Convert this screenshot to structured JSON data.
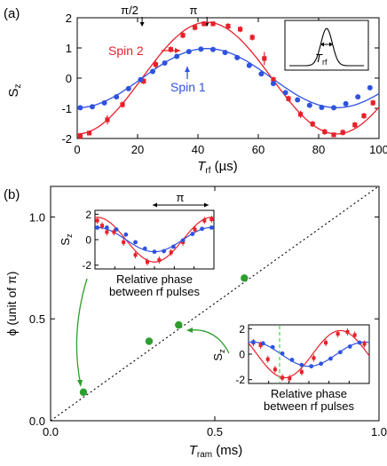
{
  "chart_data": [
    {
      "type": "scatter",
      "panel_label": "(a)",
      "xlabel": "T",
      "xlabel_sub": "rf",
      "xlabel_unit": "(µs)",
      "ylabel": "S",
      "ylabel_sub": "z",
      "xlim": [
        0,
        100
      ],
      "ylim": [
        -2,
        2
      ],
      "xticks": [
        "0",
        "20",
        "40",
        "60",
        "80",
        "100"
      ],
      "yticks": [
        "2",
        "1",
        "0",
        "-1",
        "-2"
      ],
      "top_markers": [
        {
          "x": 21.5,
          "label": "π/2"
        },
        {
          "x": 43,
          "label": "π"
        }
      ],
      "inset_label_main": "T",
      "inset_label_sub": "rf",
      "series": [
        {
          "name": "Spin 2",
          "color": "#e8202a",
          "fit": {
            "amplitude": 1.85,
            "period": 86,
            "phase": 0
          },
          "x": [
            1,
            4,
            10,
            15,
            22,
            26,
            31,
            35,
            39,
            42,
            45,
            50,
            54,
            58,
            62,
            65,
            70,
            74,
            78,
            82,
            85,
            88,
            92,
            95,
            98
          ],
          "y": [
            -1.92,
            -1.82,
            -1.38,
            -0.88,
            -0.1,
            0.45,
            0.95,
            1.42,
            1.68,
            1.8,
            1.8,
            1.72,
            1.62,
            1.35,
            0.65,
            -0.05,
            -0.68,
            -1.2,
            -1.52,
            -1.78,
            -1.88,
            -1.8,
            -1.55,
            -1.25,
            -0.82
          ],
          "err": [
            0.1,
            0.08,
            0.15,
            0.1,
            0.1,
            0.12,
            0.1,
            0.1,
            0.1,
            0.08,
            0.08,
            0.1,
            0.1,
            0.1,
            0.22,
            0.1,
            0.1,
            0.12,
            0.1,
            0.1,
            0.08,
            0.1,
            0.1,
            0.1,
            0.1
          ]
        },
        {
          "name": "Spin 1",
          "color": "#2f52e0",
          "fit": {
            "amplitude": 0.98,
            "period": 86,
            "phase": 0
          },
          "x": [
            1,
            5,
            9,
            13,
            17,
            21,
            25,
            29,
            33,
            37,
            41,
            45,
            49,
            53,
            57,
            61,
            65,
            69,
            73,
            77,
            81,
            85,
            89,
            93,
            97
          ],
          "y": [
            -0.98,
            -0.95,
            -0.82,
            -0.62,
            -0.35,
            -0.05,
            0.22,
            0.5,
            0.72,
            0.88,
            0.96,
            0.95,
            0.85,
            0.68,
            0.42,
            0.14,
            -0.18,
            -0.48,
            -0.72,
            -0.9,
            -0.97,
            -0.98,
            -0.85,
            -0.62,
            -0.32
          ],
          "err": [
            0.06,
            0.06,
            0.06,
            0.06,
            0.06,
            0.06,
            0.06,
            0.06,
            0.06,
            0.06,
            0.06,
            0.06,
            0.06,
            0.06,
            0.06,
            0.06,
            0.06,
            0.06,
            0.06,
            0.06,
            0.06,
            0.06,
            0.06,
            0.06,
            0.06
          ]
        }
      ]
    },
    {
      "type": "scatter",
      "panel_label": "(b)",
      "xlabel": "T",
      "xlabel_sub": "ram",
      "xlabel_unit": "(ms)",
      "ylabel": "ϕ (unit of π)",
      "xlim": [
        0,
        1.0
      ],
      "ylim": [
        0,
        1.15
      ],
      "xticks": [
        "0.0",
        "0.5",
        "1.0"
      ],
      "yticks": [
        "0.0",
        "0.5",
        "1.0"
      ],
      "reference_line": {
        "slope": 1.2,
        "intercept": 0
      },
      "series": [
        {
          "name": "",
          "color": "#2e9e2e",
          "x": [
            0.1,
            0.3,
            0.39,
            0.59
          ],
          "y": [
            0.14,
            0.39,
            0.47,
            0.7
          ]
        }
      ],
      "insets": [
        {
          "ylabel": "S",
          "ylabel_sub": "z",
          "yticks": [
            "2",
            "0",
            "-2"
          ],
          "xlabel": "Relative phase",
          "xlabel2": "between rf pulses",
          "arrow_label": "π",
          "red": {
            "x": [
              0.02,
              0.06,
              0.1,
              0.16,
              0.24,
              0.34,
              0.44,
              0.54,
              0.64,
              0.74,
              0.84,
              0.92,
              0.98
            ],
            "y": [
              1.5,
              1.1,
              0.6,
              0.6,
              -0.2,
              -1.2,
              -1.75,
              -1.6,
              -1.0,
              -0.2,
              0.8,
              1.5,
              1.6
            ]
          },
          "blue": {
            "x": [
              0.02,
              0.1,
              0.18,
              0.26,
              0.34,
              0.42,
              0.5,
              0.58,
              0.66,
              0.74,
              0.82,
              0.9,
              0.98
            ],
            "y": [
              0.95,
              0.95,
              0.8,
              0.4,
              -0.2,
              -0.7,
              -0.95,
              -0.9,
              -0.55,
              -0.05,
              0.45,
              0.85,
              0.95
            ]
          }
        },
        {
          "ylabel": "S",
          "ylabel_sub": "z",
          "yticks": [
            "2",
            "0",
            "-2"
          ],
          "xlabel": "Relative phase",
          "xlabel2": "between rf pulses",
          "red": {
            "x": [
              0.04,
              0.1,
              0.16,
              0.22,
              0.28,
              0.34,
              0.44,
              0.54,
              0.64,
              0.74,
              0.82,
              0.88,
              0.96
            ],
            "y": [
              0.9,
              0.7,
              -0.4,
              -1.2,
              -1.85,
              -1.9,
              -1.4,
              -0.3,
              0.9,
              1.6,
              1.75,
              1.5,
              0.8
            ]
          },
          "blue": {
            "x": [
              0.04,
              0.12,
              0.2,
              0.28,
              0.36,
              0.44,
              0.52,
              0.6,
              0.68,
              0.76,
              0.84,
              0.92
            ],
            "y": [
              0.95,
              0.85,
              0.55,
              0.05,
              -0.45,
              -0.85,
              -0.95,
              -0.75,
              -0.35,
              0.15,
              0.6,
              0.9
            ]
          }
        }
      ]
    }
  ]
}
